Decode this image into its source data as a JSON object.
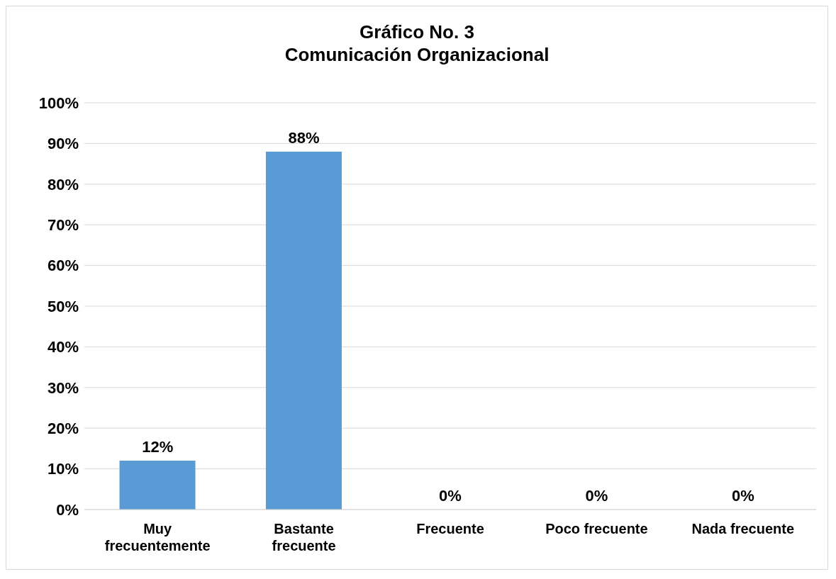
{
  "chart_data": {
    "type": "bar",
    "title": "Gráfico No. 3\nComunicación Organizacional",
    "categories": [
      "Muy frecuentemente",
      "Bastante frecuente",
      "Frecuente",
      "Poco frecuente",
      "Nada frecuente"
    ],
    "values": [
      12,
      88,
      0,
      0,
      0
    ],
    "value_labels": [
      "12%",
      "88%",
      "0%",
      "0%",
      "0%"
    ],
    "color": "#5b9bd5",
    "ylim": [
      0,
      100
    ],
    "yticks": [
      {
        "value": 0,
        "label": "0%"
      },
      {
        "value": 10,
        "label": "10%"
      },
      {
        "value": 20,
        "label": "20%"
      },
      {
        "value": 30,
        "label": "30%"
      },
      {
        "value": 40,
        "label": "40%"
      },
      {
        "value": 50,
        "label": "50%"
      },
      {
        "value": 60,
        "label": "60%"
      },
      {
        "value": 70,
        "label": "70%"
      },
      {
        "value": 80,
        "label": "80%"
      },
      {
        "value": 90,
        "label": "90%"
      },
      {
        "value": 100,
        "label": "100%"
      }
    ],
    "grid": "y",
    "legend": false
  }
}
